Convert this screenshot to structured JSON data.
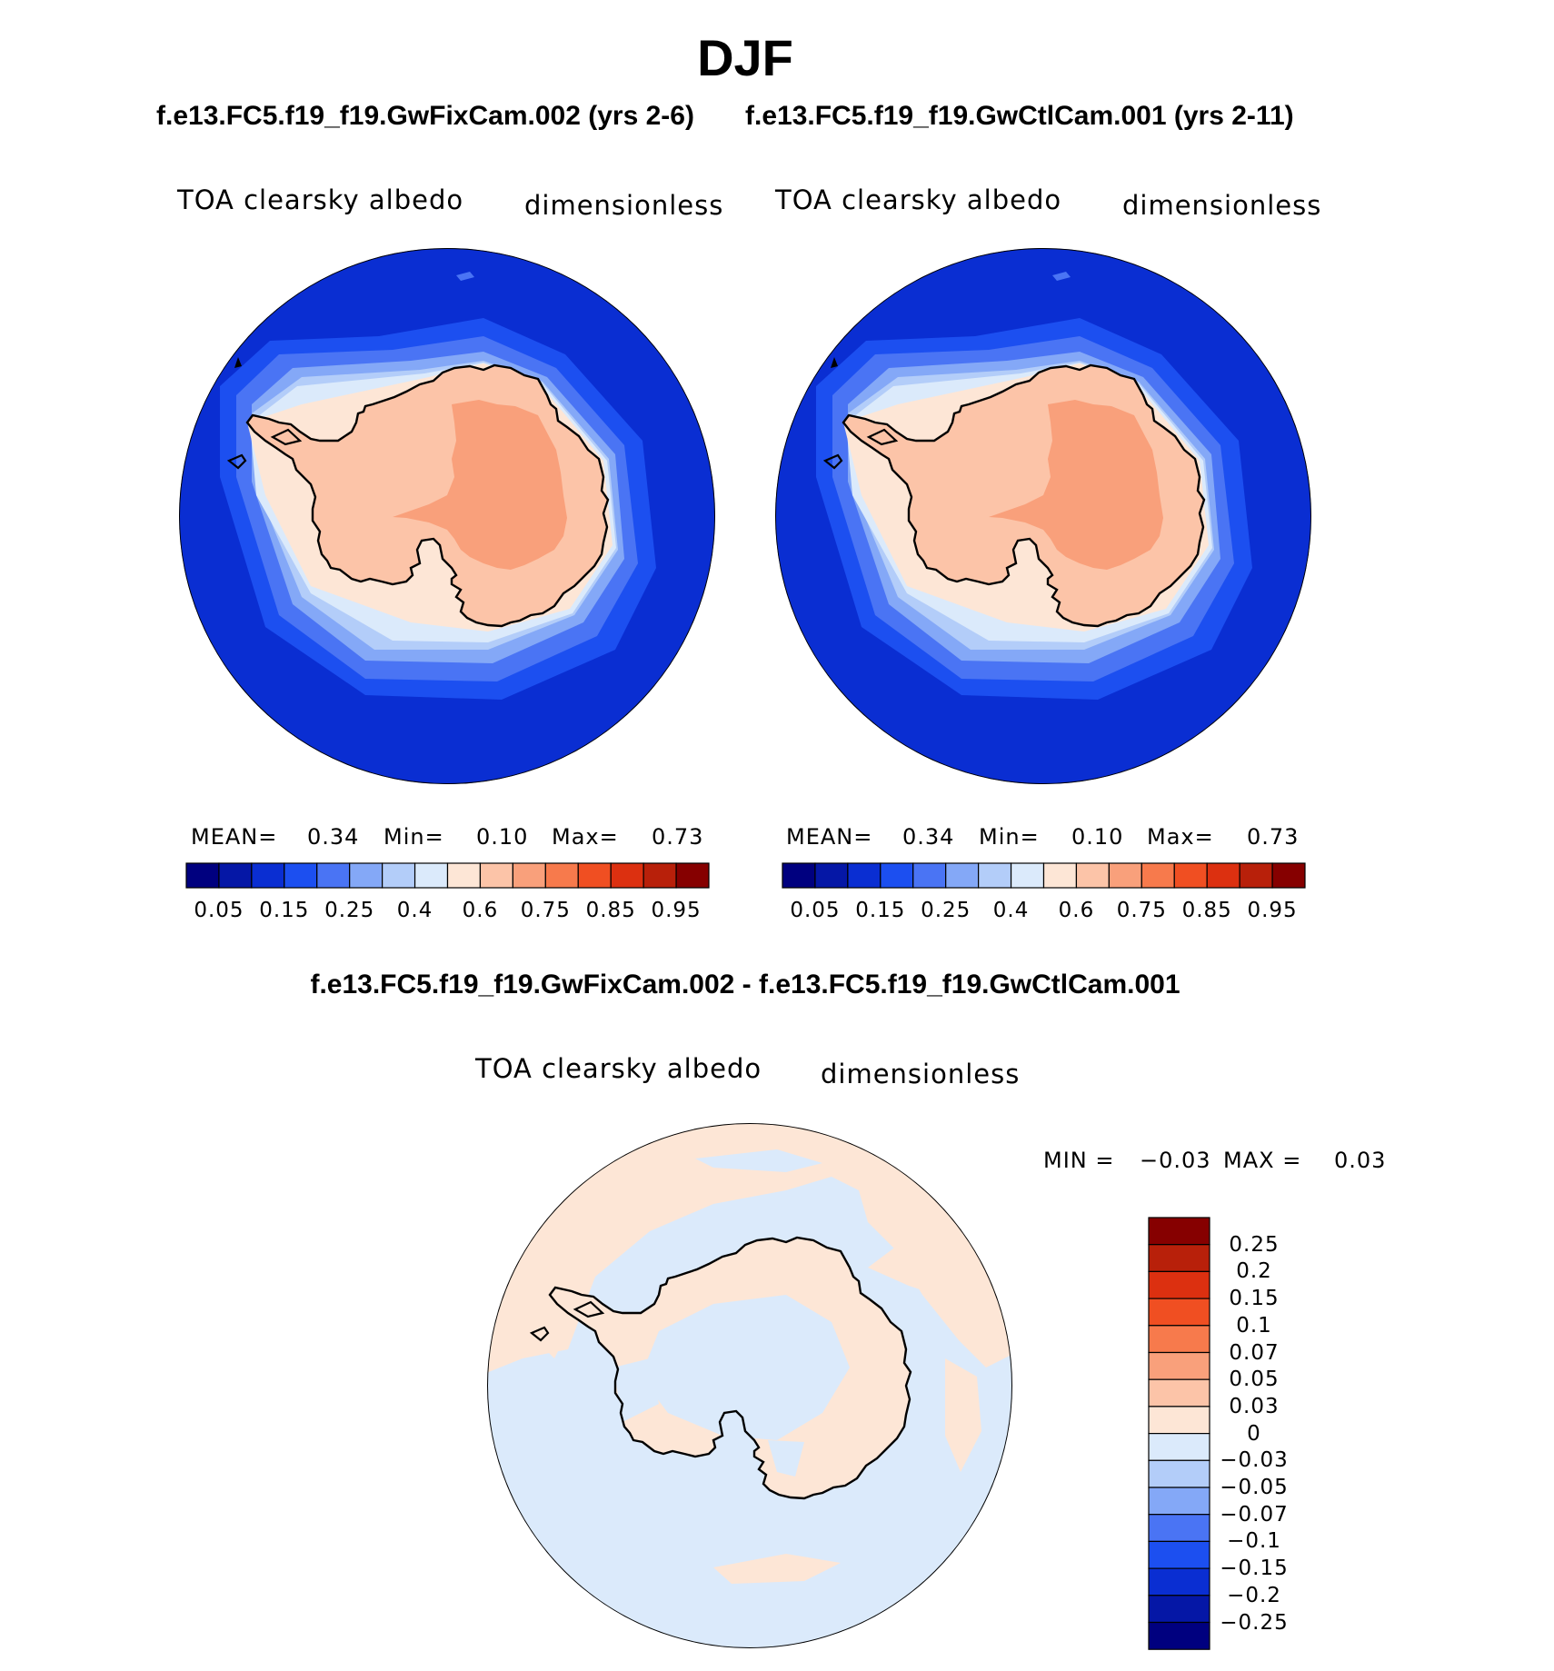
{
  "title": "DJF",
  "case_titles": {
    "left": "f.e13.FC5.f19_f19.GwFixCam.002 (yrs 2-6)",
    "right": "f.e13.FC5.f19_f19.GwCtlCam.001 (yrs 2-11)"
  },
  "diff_title": "f.e13.FC5.f19_f19.GwFixCam.002 - f.e13.FC5.f19_f19.GwCtlCam.001",
  "panels": [
    {
      "variable": "TOA clearsky albedo",
      "units": "dimensionless",
      "stats": {
        "mean_label": "MEAN=",
        "mean": "0.34",
        "min_label": "Min=",
        "min": "0.10",
        "max_label": "Max=",
        "max": "0.73"
      }
    },
    {
      "variable": "TOA clearsky albedo",
      "units": "dimensionless",
      "stats": {
        "mean_label": "MEAN=",
        "mean": "0.34",
        "min_label": "Min=",
        "min": "0.10",
        "max_label": "Max=",
        "max": "0.73"
      }
    }
  ],
  "diff_panel": {
    "variable": "TOA clearsky albedo",
    "units": "dimensionless",
    "stats": {
      "min_label": "MIN =",
      "min": "−0.03",
      "max_label": "MAX =",
      "max": "0.03"
    }
  },
  "colorbar": {
    "labels": [
      "0.05",
      "0.15",
      "0.25",
      "0.4",
      "0.6",
      "0.75",
      "0.85",
      "0.95"
    ],
    "colors": [
      "#00007f",
      "#0517a6",
      "#0a2ed2",
      "#1c4ff0",
      "#4a74f4",
      "#84a8f7",
      "#b3cdf9",
      "#dbeafb",
      "#fde6d6",
      "#fcc4a8",
      "#f9a07b",
      "#f77a4c",
      "#f04f22",
      "#dc3010",
      "#b8200a",
      "#860000"
    ]
  },
  "diff_colorbar": {
    "labels": [
      "0.25",
      "0.2",
      "0.15",
      "0.1",
      "0.07",
      "0.05",
      "0.03",
      "0",
      "−0.03",
      "−0.05",
      "−0.07",
      "−0.1",
      "−0.15",
      "−0.2",
      "−0.25"
    ],
    "colors": [
      "#860000",
      "#b8200a",
      "#dc3010",
      "#f04f22",
      "#f77a4c",
      "#f9a07b",
      "#fcc4a8",
      "#fde6d6",
      "#dbeafb",
      "#b3cdf9",
      "#84a8f7",
      "#4a74f4",
      "#1c4ff0",
      "#0a2ed2",
      "#0517a6",
      "#00007f"
    ]
  },
  "map_colors": {
    "ocean": "#0a2ed2",
    "band1": "#1c4ff0",
    "band2": "#4a74f4",
    "band3": "#84a8f7",
    "band4": "#b3cdf9",
    "band5": "#dbeafb",
    "band6": "#fde6d6",
    "land": "#fcc4a8",
    "interior": "#f9a07b",
    "diff_neg": "#dbeafb",
    "diff_pos": "#fde6d6"
  }
}
